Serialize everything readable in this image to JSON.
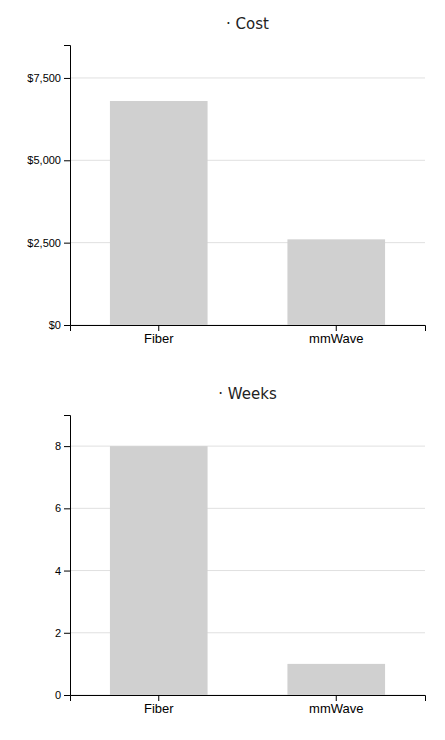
{
  "chart_data": [
    {
      "type": "bar",
      "title": "· Cost",
      "categories": [
        "Fiber",
        "mmWave"
      ],
      "values": [
        6800,
        2600
      ],
      "color": "#d0d0d0",
      "ylim": [
        0,
        8500
      ],
      "yticks": [
        {
          "value": 0,
          "label": "$0"
        },
        {
          "value": 2500,
          "label": "$2,500"
        },
        {
          "value": 5000,
          "label": "$5,000"
        },
        {
          "value": 7500,
          "label": "$7,500"
        }
      ],
      "grid": true
    },
    {
      "type": "bar",
      "title": "· Weeks",
      "categories": [
        "Fiber",
        "mmWave"
      ],
      "values": [
        8,
        1
      ],
      "color": "#d0d0d0",
      "ylim": [
        0,
        9
      ],
      "yticks": [
        0,
        2,
        4,
        6,
        8
      ],
      "grid": true
    }
  ]
}
